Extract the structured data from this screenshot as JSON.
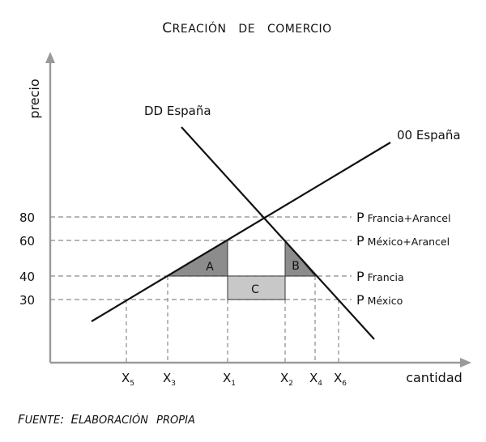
{
  "title": {
    "first": "C",
    "rest": "REACIÓN",
    "word2": "DE",
    "word3": "COMERCIO"
  },
  "axes": {
    "y_label": "precio",
    "x_label": "cantidad"
  },
  "curves": {
    "demand_label": "DD España",
    "supply_label": "00 España"
  },
  "y_ticks": [
    "80",
    "60",
    "40",
    "30"
  ],
  "x_ticks": [
    {
      "main": "X",
      "sub": "5"
    },
    {
      "main": "X",
      "sub": "3"
    },
    {
      "main": "X",
      "sub": "1"
    },
    {
      "main": "X",
      "sub": "2"
    },
    {
      "main": "X",
      "sub": "4"
    },
    {
      "main": "X",
      "sub": "6"
    }
  ],
  "price_lines": [
    {
      "p": "P",
      "label": "Francia+Arancel",
      "value": 80
    },
    {
      "p": "P",
      "label": "México+Arancel",
      "value": 60
    },
    {
      "p": "P",
      "label": "Francia",
      "value": 40
    },
    {
      "p": "P",
      "label": "México",
      "value": 30
    }
  ],
  "areas": {
    "a": "A",
    "b": "B",
    "c": "C"
  },
  "colors": {
    "triangle_fill": "#8c8c8c",
    "rect_fill": "#c8c8c8",
    "dashed_lines": "#8a8a8a",
    "axes": "#9a9a9a"
  },
  "source": {
    "f1": "F",
    "r1": "UENTE",
    "colon": ":",
    "f2": "E",
    "r2": "LABORACIÓN",
    "r3": "PROPIA"
  }
}
